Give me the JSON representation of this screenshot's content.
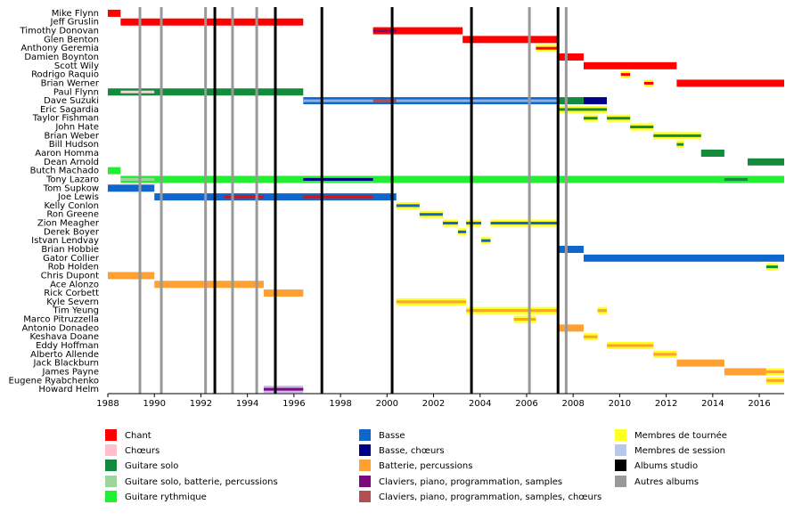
{
  "chart_data": {
    "type": "timeline",
    "xlim": [
      1988,
      2017.07
    ],
    "xticks": [
      1988,
      1990,
      1992,
      1994,
      1996,
      1998,
      2000,
      2002,
      2004,
      2006,
      2008,
      2010,
      2012,
      2014,
      2016
    ],
    "members": [
      {
        "name": "Mike Flynn",
        "bars": [
          {
            "start": 1988,
            "end": 1988.55,
            "color": "#ff0000"
          }
        ]
      },
      {
        "name": "Jeff Gruslin",
        "bars": [
          {
            "start": 1988.55,
            "end": 1996.4,
            "color": "#ff0000"
          }
        ]
      },
      {
        "name": "Timothy Donovan",
        "bars": [
          {
            "start": 1999.4,
            "end": 2003.25,
            "color": "#ff0000",
            "overlays": [
              {
                "start": 1999.4,
                "end": 2000.4,
                "color": "#7a0a7a"
              }
            ]
          }
        ]
      },
      {
        "name": "Glen Benton",
        "bars": [
          {
            "start": 2003.25,
            "end": 2007.4,
            "color": "#ff0000"
          }
        ]
      },
      {
        "name": "Anthony Geremia",
        "bars": [
          {
            "start": 2006.4,
            "end": 2007.4,
            "color": "#ffff22",
            "stripe": "#ff0000"
          }
        ]
      },
      {
        "name": "Damien Boynton",
        "bars": [
          {
            "start": 2007.4,
            "end": 2008.45,
            "color": "#ff0000"
          }
        ]
      },
      {
        "name": "Scott Wily",
        "bars": [
          {
            "start": 2008.45,
            "end": 2012.45,
            "color": "#ff0000"
          }
        ]
      },
      {
        "name": "Rodrigo Raquio",
        "bars": [
          {
            "start": 2010.05,
            "end": 2010.45,
            "color": "#ffff22",
            "stripe": "#ff0000"
          }
        ]
      },
      {
        "name": "Brian Werner",
        "bars": [
          {
            "start": 2011.05,
            "end": 2011.45,
            "color": "#ffff22",
            "stripe": "#ff0000"
          },
          {
            "start": 2012.45,
            "end": 2017.07,
            "color": "#ff0000"
          }
        ]
      },
      {
        "name": "Paul Flynn",
        "bars": [
          {
            "start": 1988,
            "end": 1996.4,
            "color": "#138a3c",
            "overlays": [
              {
                "start": 1988.55,
                "end": 1990,
                "color": "#f3d6d6"
              }
            ]
          }
        ]
      },
      {
        "name": "Dave Suzuki",
        "bars": [
          {
            "start": 1996.4,
            "end": 2007.4,
            "color": "#1166cc",
            "stripe": "#8fb0e0",
            "overlays": [
              {
                "start": 1999.4,
                "end": 2000.4,
                "color": "#b05050"
              }
            ]
          },
          {
            "start": 2007.4,
            "end": 2008.45,
            "color": "#138a3c"
          },
          {
            "start": 2008.45,
            "end": 2009.45,
            "color": "#000088"
          }
        ]
      },
      {
        "name": "Eric Sagardia",
        "bars": [
          {
            "start": 2007.4,
            "end": 2009.45,
            "color": "#ffff22",
            "stripe": "#138a3c"
          }
        ]
      },
      {
        "name": "Taylor Fishman",
        "bars": [
          {
            "start": 2008.45,
            "end": 2009.05,
            "color": "#ffff22",
            "stripe": "#138a3c"
          },
          {
            "start": 2009.45,
            "end": 2010.45,
            "color": "#ffff22",
            "stripe": "#138a3c"
          }
        ]
      },
      {
        "name": "John Hate",
        "bars": [
          {
            "start": 2010.45,
            "end": 2011.45,
            "color": "#ffff22",
            "stripe": "#138a3c"
          }
        ]
      },
      {
        "name": "Brian Weber",
        "bars": [
          {
            "start": 2011.45,
            "end": 2013.5,
            "color": "#ffff22",
            "stripe": "#138a3c"
          }
        ]
      },
      {
        "name": "Bill Hudson",
        "bars": [
          {
            "start": 2012.45,
            "end": 2012.75,
            "color": "#ffff22",
            "stripe": "#138a3c"
          }
        ]
      },
      {
        "name": "Aaron Homma",
        "bars": [
          {
            "start": 2013.5,
            "end": 2014.5,
            "color": "#138a3c"
          }
        ]
      },
      {
        "name": "Dean Arnold",
        "bars": [
          {
            "start": 2015.5,
            "end": 2017.07,
            "color": "#138a3c"
          }
        ]
      },
      {
        "name": "Butch Machado",
        "bars": [
          {
            "start": 1988,
            "end": 1988.55,
            "color": "#22ee33"
          }
        ]
      },
      {
        "name": "Tony Lazaro",
        "bars": [
          {
            "start": 1988.55,
            "end": 2017.07,
            "color": "#22ee33",
            "overlays": [
              {
                "start": 1988.55,
                "end": 1990,
                "color": "#9cd69c"
              },
              {
                "start": 1996.4,
                "end": 1999.4,
                "color": "#000088"
              },
              {
                "start": 2014.5,
                "end": 2015.5,
                "color": "#138a3c"
              }
            ]
          }
        ]
      },
      {
        "name": "Tom Supkow",
        "bars": [
          {
            "start": 1988,
            "end": 1990,
            "color": "#1166cc"
          }
        ]
      },
      {
        "name": "Joe Lewis",
        "bars": [
          {
            "start": 1990,
            "end": 2000.4,
            "color": "#1166cc",
            "overlays": [
              {
                "start": 1993,
                "end": 1994.7,
                "color": "#dd1111"
              },
              {
                "start": 1996.4,
                "end": 1999.4,
                "color": "#dd1111"
              }
            ]
          }
        ]
      },
      {
        "name": "Kelly Conlon",
        "bars": [
          {
            "start": 2000.4,
            "end": 2001.4,
            "color": "#ffff22",
            "stripe": "#1166cc"
          }
        ]
      },
      {
        "name": "Ron Greene",
        "bars": [
          {
            "start": 2001.4,
            "end": 2002.4,
            "color": "#ffff22",
            "stripe": "#1166cc"
          }
        ]
      },
      {
        "name": "Zion Meagher",
        "bars": [
          {
            "start": 2002.4,
            "end": 2003.05,
            "color": "#ffff22",
            "stripe": "#1166cc"
          },
          {
            "start": 2003.4,
            "end": 2004.05,
            "color": "#ffff22",
            "stripe": "#1166cc"
          },
          {
            "start": 2004.45,
            "end": 2007.4,
            "color": "#ffff22",
            "stripe": "#1166cc"
          }
        ]
      },
      {
        "name": "Derek Boyer",
        "bars": [
          {
            "start": 2003.05,
            "end": 2003.4,
            "color": "#ffff22",
            "stripe": "#1166cc"
          }
        ]
      },
      {
        "name": "Istvan Lendvay",
        "bars": [
          {
            "start": 2004.05,
            "end": 2004.45,
            "color": "#ffff22",
            "stripe": "#1166cc"
          }
        ]
      },
      {
        "name": "Brian Hobbie",
        "bars": [
          {
            "start": 2007.4,
            "end": 2008.45,
            "color": "#1166cc"
          }
        ]
      },
      {
        "name": "Gator Collier",
        "bars": [
          {
            "start": 2008.45,
            "end": 2017.07,
            "color": "#1166cc"
          }
        ]
      },
      {
        "name": "Rob Holden",
        "bars": [
          {
            "start": 2016.3,
            "end": 2016.8,
            "color": "#ffff22",
            "stripe": "#138a3c"
          }
        ]
      },
      {
        "name": "Chris Dupont",
        "bars": [
          {
            "start": 1988,
            "end": 1990,
            "color": "#ffa033"
          }
        ]
      },
      {
        "name": "Ace Alonzo",
        "bars": [
          {
            "start": 1990,
            "end": 1994.7,
            "color": "#ffa033"
          }
        ]
      },
      {
        "name": "Rick Corbett",
        "bars": [
          {
            "start": 1994.7,
            "end": 1996.4,
            "color": "#ffa033"
          }
        ]
      },
      {
        "name": "Kyle Severn",
        "bars": [
          {
            "start": 2000.4,
            "end": 2003.4,
            "color": "#ffff22",
            "stripe": "#ffa033"
          }
        ]
      },
      {
        "name": "Tim Yeung",
        "bars": [
          {
            "start": 2003.4,
            "end": 2007.4,
            "color": "#ffff22",
            "stripe": "#ffa033"
          },
          {
            "start": 2009.05,
            "end": 2009.45,
            "color": "#ffff22",
            "stripe": "#ffa033"
          }
        ]
      },
      {
        "name": "Marco Pitruzzella",
        "bars": [
          {
            "start": 2005.45,
            "end": 2006.4,
            "color": "#ffff22",
            "stripe": "#ffa033"
          }
        ]
      },
      {
        "name": "Antonio Donadeo",
        "bars": [
          {
            "start": 2007.4,
            "end": 2008.45,
            "color": "#ffa033"
          }
        ]
      },
      {
        "name": "Keshava Doane",
        "bars": [
          {
            "start": 2008.45,
            "end": 2009.05,
            "color": "#ffff22",
            "stripe": "#ffa033"
          }
        ]
      },
      {
        "name": "Eddy Hoffman",
        "bars": [
          {
            "start": 2009.45,
            "end": 2011.45,
            "color": "#ffff22",
            "stripe": "#ffa033"
          }
        ]
      },
      {
        "name": "Alberto Allende",
        "bars": [
          {
            "start": 2011.45,
            "end": 2012.45,
            "color": "#ffff22",
            "stripe": "#ffa033"
          }
        ]
      },
      {
        "name": "Jack Blackburn",
        "bars": [
          {
            "start": 2012.45,
            "end": 2014.5,
            "color": "#ffa033"
          }
        ]
      },
      {
        "name": "James Payne",
        "bars": [
          {
            "start": 2014.5,
            "end": 2016.3,
            "color": "#ffa033"
          },
          {
            "start": 2016.3,
            "end": 2017.07,
            "color": "#ffff22",
            "stripe": "#ffa033"
          }
        ]
      },
      {
        "name": "Eugene Ryabchenko",
        "bars": [
          {
            "start": 2016.3,
            "end": 2017.07,
            "color": "#ffff22",
            "stripe": "#ffa033"
          }
        ]
      },
      {
        "name": "Howard Helm",
        "bars": [
          {
            "start": 1994.7,
            "end": 1996.4,
            "color": "#c8b8ee",
            "stripe": "#7a0a7a"
          }
        ]
      }
    ],
    "vlines": [
      {
        "color": "#999999",
        "values": [
          1989.38,
          1990.3,
          1992.2,
          1993.36,
          1994.4,
          2006.12,
          2007.7
        ]
      },
      {
        "color": "#000000",
        "values": [
          1992.6,
          1995.2,
          1997.2,
          2000.22,
          2003.63,
          2007.35
        ]
      }
    ],
    "legend": [
      {
        "label": "Chant",
        "color": "#ff0000"
      },
      {
        "label": "Chœurs",
        "color": "#ffc0cb"
      },
      {
        "label": "Guitare solo",
        "color": "#138a3c"
      },
      {
        "label": "Guitare solo, batterie, percussions",
        "color": "#9cd69c"
      },
      {
        "label": "Guitare rythmique",
        "color": "#22ee33"
      },
      {
        "label": "Basse",
        "color": "#1166cc"
      },
      {
        "label": "Basse, chœurs",
        "color": "#000088"
      },
      {
        "label": "Batterie, percussions",
        "color": "#ffa033"
      },
      {
        "label": "Claviers, piano, programmation, samples",
        "color": "#7a0a7a"
      },
      {
        "label": "Claviers, piano, programmation, samples, chœurs",
        "color": "#b05050"
      },
      {
        "label": "Membres de tournée",
        "color": "#ffff22"
      },
      {
        "label": "Membres de session",
        "color": "#b8c8ea"
      },
      {
        "label": "Albums studio",
        "color": "#000000"
      },
      {
        "label": "Autres albums",
        "color": "#999999"
      }
    ]
  }
}
